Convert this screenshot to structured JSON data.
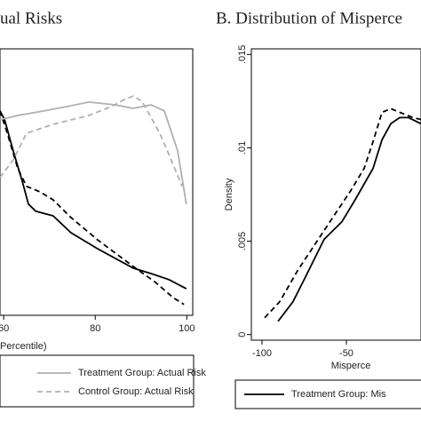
{
  "chart_data": [
    {
      "type": "line",
      "title": "ual Risks",
      "xlabel": "Percentile)",
      "xlim": [
        59.2,
        101.3
      ],
      "ylim": [
        6.8,
        100
      ],
      "xticks": [
        60,
        80,
        100
      ],
      "series": [
        {
          "color": "#000000",
          "dash": false,
          "x": [
            59.2,
            60.2,
            62.1,
            64.1,
            65.4,
            67.0,
            70.8,
            74.7,
            80.5,
            88.3,
            92.2,
            96.1,
            99.9
          ],
          "values": [
            78.3,
            75.2,
            64.3,
            53.4,
            45.7,
            43.2,
            41.6,
            35.7,
            30.1,
            23.3,
            21.4,
            19.3,
            16.1
          ]
        },
        {
          "color": "#000000",
          "dash": true,
          "x": [
            59.2,
            60.8,
            63.1,
            65.0,
            67.9,
            70.8,
            74.7,
            80.5,
            88.3,
            93.2,
            97.0,
            99.4
          ],
          "values": [
            78.3,
            70.5,
            58.1,
            51.9,
            50.0,
            47.2,
            41.0,
            33.2,
            23.9,
            18.3,
            13.0,
            10.6
          ]
        },
        {
          "name": "Treatment Group: Actual Risk",
          "color": "#b0b0b0",
          "dash": false,
          "x": [
            59.2,
            63.1,
            68.9,
            73.8,
            78.6,
            84.4,
            88.3,
            92.2,
            95.1,
            98.0,
            99.9
          ],
          "values": [
            75.2,
            76.7,
            78.3,
            79.8,
            81.4,
            80.4,
            79.2,
            80.4,
            78.3,
            64.3,
            45.7
          ]
        },
        {
          "name": "Control Group: Actual Risk",
          "color": "#b0b0b0",
          "dash": true,
          "x": [
            59.2,
            62.1,
            65.0,
            70.8,
            78.6,
            83.5,
            86.4,
            88.3,
            90.2,
            94.1,
            97.0,
            99.0
          ],
          "values": [
            55.0,
            61.2,
            70.5,
            73.6,
            76.7,
            79.8,
            82.3,
            83.5,
            81.7,
            70.5,
            59.6,
            51.9
          ]
        }
      ]
    },
    {
      "type": "line",
      "title": "B. Distribution of Misperce",
      "xlabel": "Misperce",
      "ylabel": "Density",
      "xlim": [
        -106.3,
        -5.8
      ],
      "ylim": [
        -0.0003,
        0.0153
      ],
      "xticks": [
        -100,
        -50
      ],
      "yticks": [
        0,
        {
          "value": 0.005,
          "label": ".005"
        },
        {
          "value": 0.01,
          "label": ".01"
        },
        {
          "value": 0.015,
          "label": ".015"
        }
      ],
      "series": [
        {
          "name": "Treatment Group: Mis",
          "color": "#000000",
          "dash": false,
          "x": [
            -90.5,
            -81.6,
            -73.7,
            -63.2,
            -52.6,
            -44.7,
            -34.2,
            -28.9,
            -23.7,
            -18.4,
            -13.2,
            -5.8
          ],
          "values": [
            0.00071,
            0.00176,
            0.00319,
            0.0051,
            0.00605,
            0.00724,
            0.0089,
            0.01043,
            0.01129,
            0.01162,
            0.01162,
            0.01129
          ]
        },
        {
          "color": "#000000",
          "dash": true,
          "x": [
            -98.4,
            -89.5,
            -78.9,
            -68.4,
            -57.9,
            -47.4,
            -39.5,
            -34.2,
            -28.9,
            -23.7,
            -18.4,
            -10.5,
            -5.8
          ],
          "values": [
            0.0009,
            0.00176,
            0.00343,
            0.00486,
            0.00629,
            0.00771,
            0.0089,
            0.01033,
            0.0119,
            0.0121,
            0.0119,
            0.01162,
            0.01152
          ]
        }
      ]
    }
  ]
}
